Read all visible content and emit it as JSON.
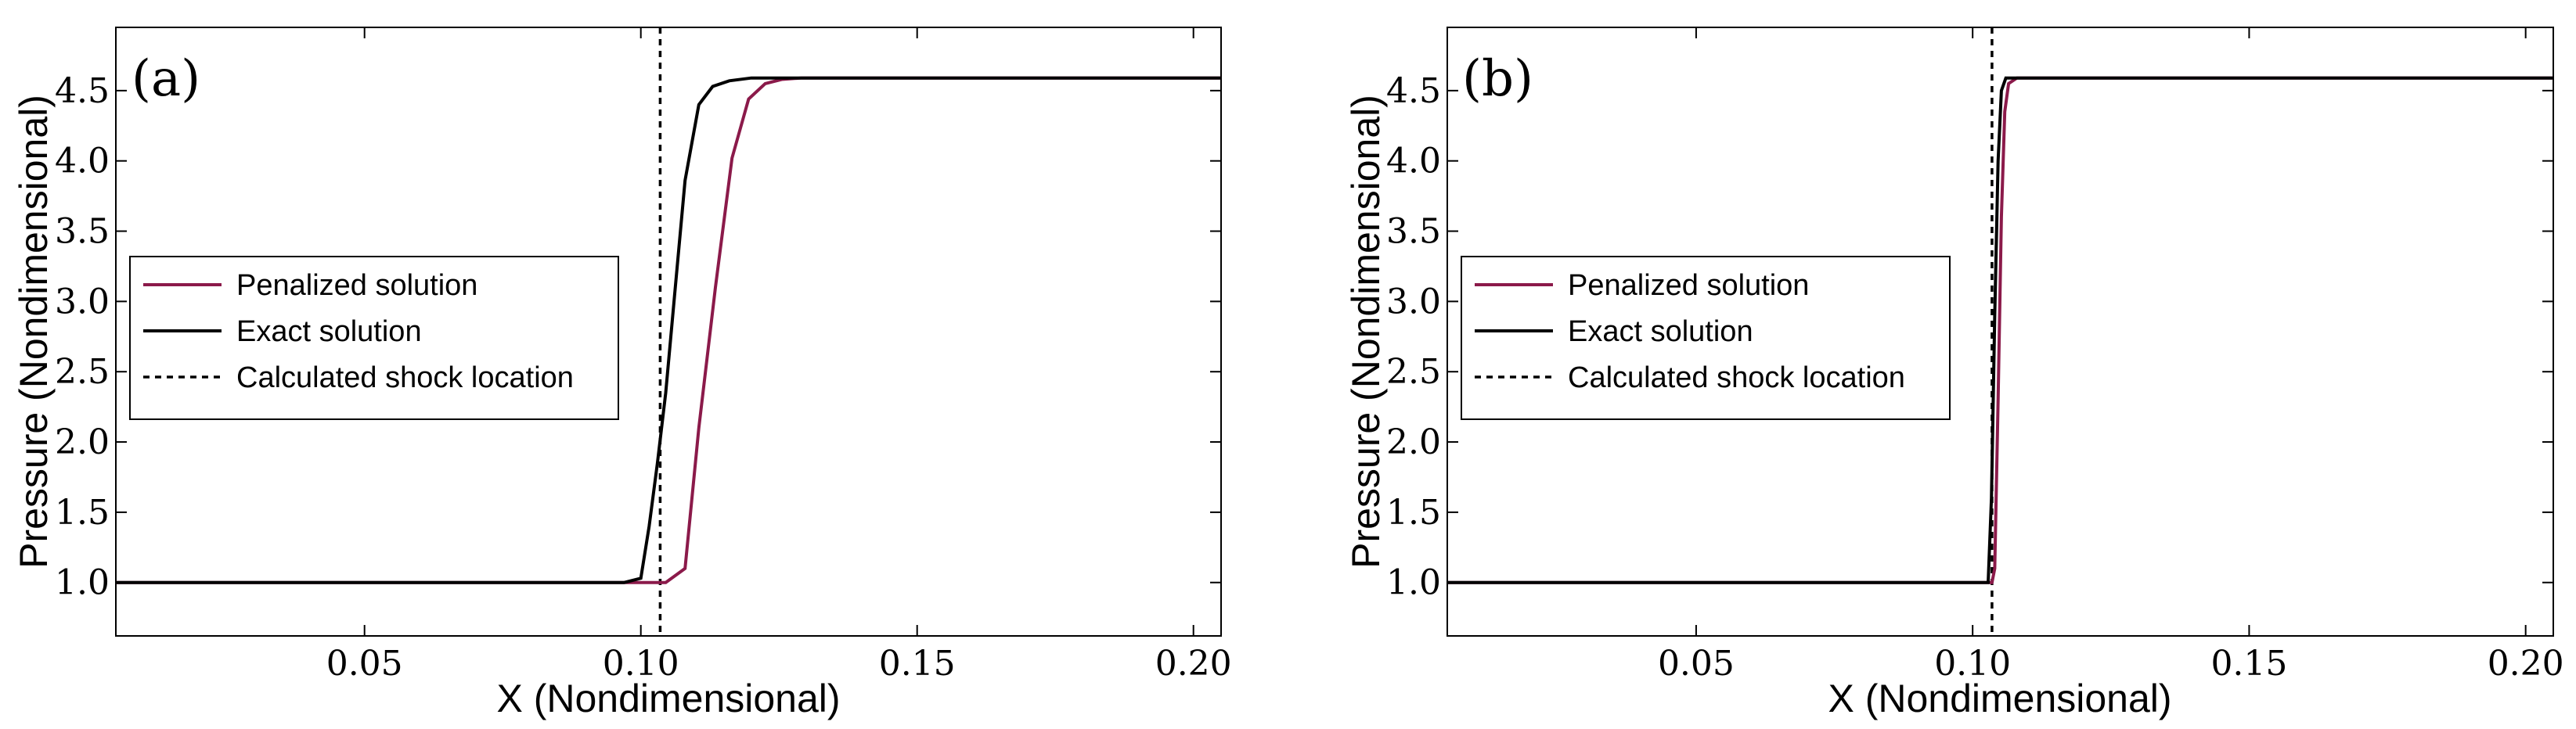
{
  "chart_data": [
    {
      "type": "line",
      "panel_label": "(a)",
      "xlabel": "X (Nondimensional)",
      "ylabel": "Pressure (Nondimensional)",
      "xlim": [
        0.005,
        0.205
      ],
      "ylim": [
        0.62,
        4.95
      ],
      "xticks": [
        0.05,
        0.1,
        0.15,
        0.2
      ],
      "xtick_labels": [
        "0.05",
        "0.10",
        "0.15",
        "0.20"
      ],
      "yticks": [
        1.0,
        1.5,
        2.0,
        2.5,
        3.0,
        3.5,
        4.0,
        4.5
      ],
      "ytick_labels": [
        "1.0",
        "1.5",
        "2.0",
        "2.5",
        "3.0",
        "3.5",
        "4.0",
        "4.5"
      ],
      "grid": false,
      "legend_position": "center-left",
      "shock_location": 0.1035,
      "series": [
        {
          "name": "Penalized solution",
          "color": "#8b1a4a",
          "x": [
            0.005,
            0.1,
            0.1045,
            0.108,
            0.1105,
            0.1135,
            0.1165,
            0.1195,
            0.1225,
            0.1255,
            0.129,
            0.135,
            0.205
          ],
          "y": [
            1.0,
            1.0,
            1.0,
            1.1,
            2.1,
            3.1,
            4.02,
            4.44,
            4.55,
            4.58,
            4.59,
            4.59,
            4.59
          ]
        },
        {
          "name": "Exact solution",
          "color": "#000000",
          "x": [
            0.005,
            0.097,
            0.1,
            0.1015,
            0.103,
            0.1045,
            0.106,
            0.108,
            0.1105,
            0.113,
            0.116,
            0.12,
            0.126,
            0.205
          ],
          "y": [
            1.0,
            1.0,
            1.03,
            1.4,
            1.85,
            2.35,
            3.0,
            3.86,
            4.4,
            4.53,
            4.57,
            4.59,
            4.59,
            4.59
          ]
        }
      ],
      "legend": [
        "Penalized solution",
        "Exact solution",
        "Calculated shock location"
      ]
    },
    {
      "type": "line",
      "panel_label": "(b)",
      "xlabel": "X (Nondimensional)",
      "ylabel": "Pressure (Nondimensional)",
      "xlim": [
        0.005,
        0.205
      ],
      "ylim": [
        0.62,
        4.95
      ],
      "xticks": [
        0.05,
        0.1,
        0.15,
        0.2
      ],
      "xtick_labels": [
        "0.05",
        "0.10",
        "0.15",
        "0.20"
      ],
      "yticks": [
        1.0,
        1.5,
        2.0,
        2.5,
        3.0,
        3.5,
        4.0,
        4.5
      ],
      "ytick_labels": [
        "1.0",
        "1.5",
        "2.0",
        "2.5",
        "3.0",
        "3.5",
        "4.0",
        "4.5"
      ],
      "grid": false,
      "legend_position": "center-left",
      "shock_location": 0.1035,
      "series": [
        {
          "name": "Penalized solution",
          "color": "#8b1a4a",
          "x": [
            0.005,
            0.1035,
            0.104,
            0.1046,
            0.1052,
            0.1058,
            0.1065,
            0.108,
            0.205
          ],
          "y": [
            1.0,
            1.0,
            1.1,
            2.3,
            3.6,
            4.35,
            4.55,
            4.59,
            4.59
          ]
        },
        {
          "name": "Exact solution",
          "color": "#000000",
          "x": [
            0.005,
            0.1028,
            0.1034,
            0.104,
            0.1046,
            0.1052,
            0.106,
            0.205
          ],
          "y": [
            1.0,
            1.0,
            1.6,
            2.9,
            4.0,
            4.5,
            4.59,
            4.59
          ]
        }
      ],
      "legend": [
        "Penalized solution",
        "Exact solution",
        "Calculated shock location"
      ]
    }
  ]
}
